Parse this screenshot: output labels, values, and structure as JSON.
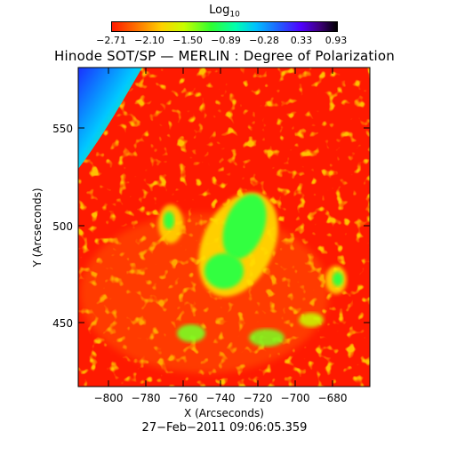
{
  "colorbar": {
    "label": "Log",
    "label_sub": "10",
    "ticks": [
      "−2.71",
      "−2.10",
      "−1.50",
      "−0.89",
      "−0.28",
      "0.33",
      "0.93"
    ]
  },
  "title": "Hinode SOT/SP — MERLIN : Degree of Polarization",
  "xaxis": {
    "label": "X (Arcseconds)",
    "ticks": [
      "−800",
      "−780",
      "−760",
      "−740",
      "−720",
      "−700",
      "−680"
    ]
  },
  "yaxis": {
    "label": "Y (Arcseconds)",
    "ticks": [
      "450",
      "500",
      "550"
    ]
  },
  "timestamp": "27−Feb−2011 09:06:05.359",
  "colors": {
    "background_red": "#ff1a00",
    "yellow": "#e8ff00",
    "green": "#30ff40",
    "limb_blue": "#1a40ff"
  }
}
